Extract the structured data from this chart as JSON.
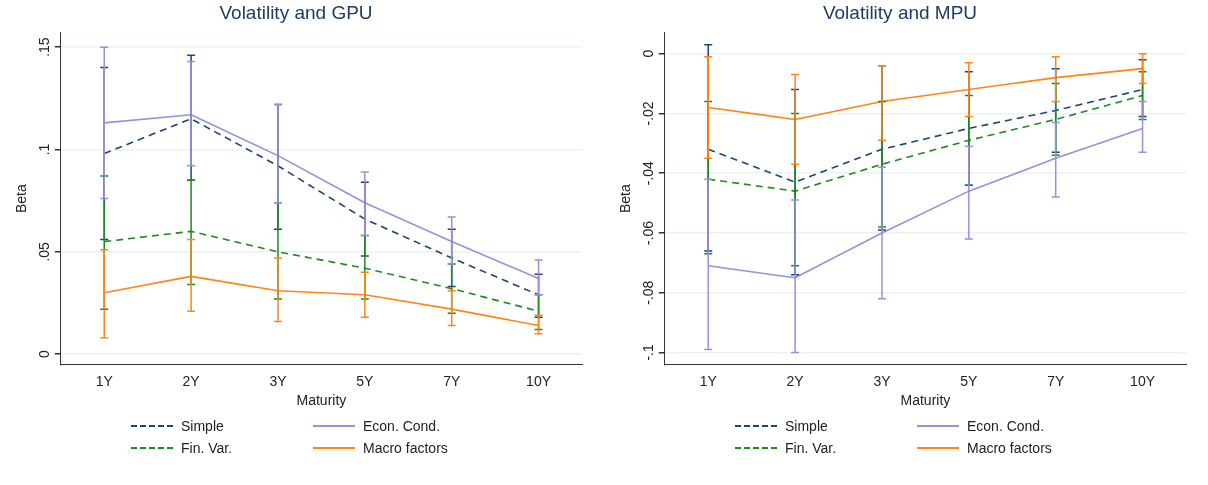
{
  "chart_data": [
    {
      "type": "line",
      "title": "Volatility and GPU",
      "xlabel": "Maturity",
      "ylabel": "Beta",
      "categories": [
        "1Y",
        "2Y",
        "3Y",
        "5Y",
        "7Y",
        "10Y"
      ],
      "ylim": [
        -0.005,
        0.157
      ],
      "yticks": [
        {
          "value": 0,
          "label": "0"
        },
        {
          "value": 0.05,
          "label": ".05"
        },
        {
          "value": 0.1,
          "label": ".1"
        },
        {
          "value": 0.15,
          "label": ".15"
        }
      ],
      "grid": "y",
      "legend": "bottom",
      "marker": "none",
      "series": [
        {
          "name": "Simple",
          "color": "#1a476f",
          "line_style": "dashed",
          "values": [
            0.098,
            0.115,
            0.092,
            0.066,
            0.047,
            0.029
          ],
          "errors": [
            [
              0.056,
              0.14
            ],
            [
              0.085,
              0.146
            ],
            [
              0.061,
              0.122
            ],
            [
              0.048,
              0.084
            ],
            [
              0.033,
              0.061
            ],
            [
              0.018,
              0.039
            ]
          ]
        },
        {
          "name": "Fin. Var.",
          "color": "#1f8a1f",
          "line_style": "dashed",
          "values": [
            0.055,
            0.06,
            0.05,
            0.042,
            0.032,
            0.021
          ],
          "errors": [
            [
              0.022,
              0.087
            ],
            [
              0.034,
              0.085
            ],
            [
              0.027,
              0.074
            ],
            [
              0.027,
              0.058
            ],
            [
              0.02,
              0.044
            ],
            [
              0.012,
              0.029
            ]
          ]
        },
        {
          "name": "Econ. Cond.",
          "color": "#9a8fdc",
          "line_style": "solid",
          "values": [
            0.113,
            0.117,
            0.097,
            0.074,
            0.055,
            0.037
          ],
          "errors": [
            [
              0.076,
              0.15
            ],
            [
              0.092,
              0.143
            ],
            [
              0.074,
              0.122
            ],
            [
              0.058,
              0.089
            ],
            [
              0.044,
              0.067
            ],
            [
              0.029,
              0.046
            ]
          ]
        },
        {
          "name": "Macro factors",
          "color": "#ff8515",
          "line_style": "solid",
          "values": [
            0.03,
            0.038,
            0.031,
            0.029,
            0.022,
            0.014
          ],
          "errors": [
            [
              0.008,
              0.051
            ],
            [
              0.021,
              0.056
            ],
            [
              0.016,
              0.047
            ],
            [
              0.018,
              0.04
            ],
            [
              0.014,
              0.031
            ],
            [
              0.01,
              0.019
            ]
          ]
        }
      ]
    },
    {
      "type": "line",
      "title": "Volatility and MPU",
      "xlabel": "Maturity",
      "ylabel": "Beta",
      "categories": [
        "1Y",
        "2Y",
        "3Y",
        "5Y",
        "7Y",
        "10Y"
      ],
      "ylim": [
        -0.104,
        0.007
      ],
      "yticks": [
        {
          "value": -0.1,
          "label": "-.1"
        },
        {
          "value": -0.08,
          "label": "-.08"
        },
        {
          "value": -0.06,
          "label": "-.06"
        },
        {
          "value": -0.04,
          "label": "-.04"
        },
        {
          "value": -0.02,
          "label": "-.02"
        },
        {
          "value": 0,
          "label": "0"
        }
      ],
      "grid": "y",
      "legend": "bottom",
      "marker": "none",
      "series": [
        {
          "name": "Simple",
          "color": "#1a476f",
          "line_style": "dashed",
          "values": [
            -0.032,
            -0.043,
            -0.032,
            -0.025,
            -0.019,
            -0.012
          ],
          "errors": [
            [
              -0.066,
              0.003
            ],
            [
              -0.074,
              -0.012
            ],
            [
              -0.059,
              -0.004
            ],
            [
              -0.044,
              -0.006
            ],
            [
              -0.033,
              -0.005
            ],
            [
              -0.021,
              -0.002
            ]
          ]
        },
        {
          "name": "Fin. Var.",
          "color": "#1f8a1f",
          "line_style": "dashed",
          "values": [
            -0.042,
            -0.046,
            -0.037,
            -0.029,
            -0.022,
            -0.014
          ],
          "errors": [
            [
              -0.067,
              -0.016
            ],
            [
              -0.071,
              -0.02
            ],
            [
              -0.058,
              -0.016
            ],
            [
              -0.044,
              -0.014
            ],
            [
              -0.034,
              -0.01
            ],
            [
              -0.022,
              -0.006
            ]
          ]
        },
        {
          "name": "Econ. Cond.",
          "color": "#9a8fdc",
          "line_style": "solid",
          "values": [
            -0.071,
            -0.075,
            -0.06,
            -0.046,
            -0.035,
            -0.025
          ],
          "errors": [
            [
              -0.099,
              -0.042
            ],
            [
              -0.1,
              -0.049
            ],
            [
              -0.082,
              -0.038
            ],
            [
              -0.062,
              -0.031
            ],
            [
              -0.048,
              -0.023
            ],
            [
              -0.033,
              -0.016
            ]
          ]
        },
        {
          "name": "Macro factors",
          "color": "#ff8515",
          "line_style": "solid",
          "values": [
            -0.018,
            -0.022,
            -0.016,
            -0.012,
            -0.008,
            -0.005
          ],
          "errors": [
            [
              -0.035,
              -0.001
            ],
            [
              -0.037,
              -0.007
            ],
            [
              -0.029,
              -0.004
            ],
            [
              -0.021,
              -0.003
            ],
            [
              -0.016,
              -0.001
            ],
            [
              -0.01,
              0.0
            ]
          ]
        }
      ]
    }
  ]
}
